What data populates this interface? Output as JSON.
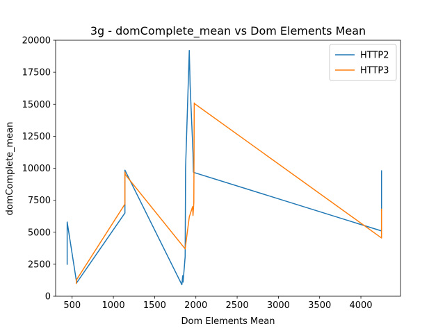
{
  "chart_data": {
    "type": "line",
    "title": "3g - domComplete_mean vs Dom Elements Mean",
    "xlabel": "Dom Elements Mean",
    "ylabel": "domComplete_mean",
    "xlim": [
      300,
      4480
    ],
    "ylim": [
      0,
      20000
    ],
    "xticks": [
      500,
      1000,
      1500,
      2000,
      2500,
      3000,
      3500,
      4000
    ],
    "yticks": [
      0,
      2500,
      5000,
      7500,
      10000,
      12500,
      15000,
      17500,
      20000
    ],
    "grid": false,
    "legend_position": "top-right",
    "series": [
      {
        "name": "HTTP2",
        "color": "#1f77b4",
        "x": [
          440,
          440,
          555,
          1140,
          1140,
          1830,
          1840,
          1845,
          1870,
          1875,
          1920,
          1930,
          1965,
          1970,
          1985,
          4250,
          4250
        ],
        "y": [
          2500,
          5800,
          1050,
          6500,
          9850,
          900,
          1600,
          1100,
          3100,
          10000,
          19200,
          16500,
          11200,
          9700,
          9650,
          5100,
          9800
        ]
      },
      {
        "name": "HTTP3",
        "color": "#ff7f0e",
        "x": [
          550,
          555,
          550,
          1140,
          1140,
          1145,
          1870,
          1920,
          1960,
          1965,
          1975,
          1980,
          1983,
          4250,
          4250
        ],
        "y": [
          1000,
          1350,
          1250,
          7200,
          9700,
          9500,
          3700,
          6200,
          7000,
          6300,
          7300,
          15100,
          15050,
          4550,
          6800
        ]
      }
    ]
  }
}
